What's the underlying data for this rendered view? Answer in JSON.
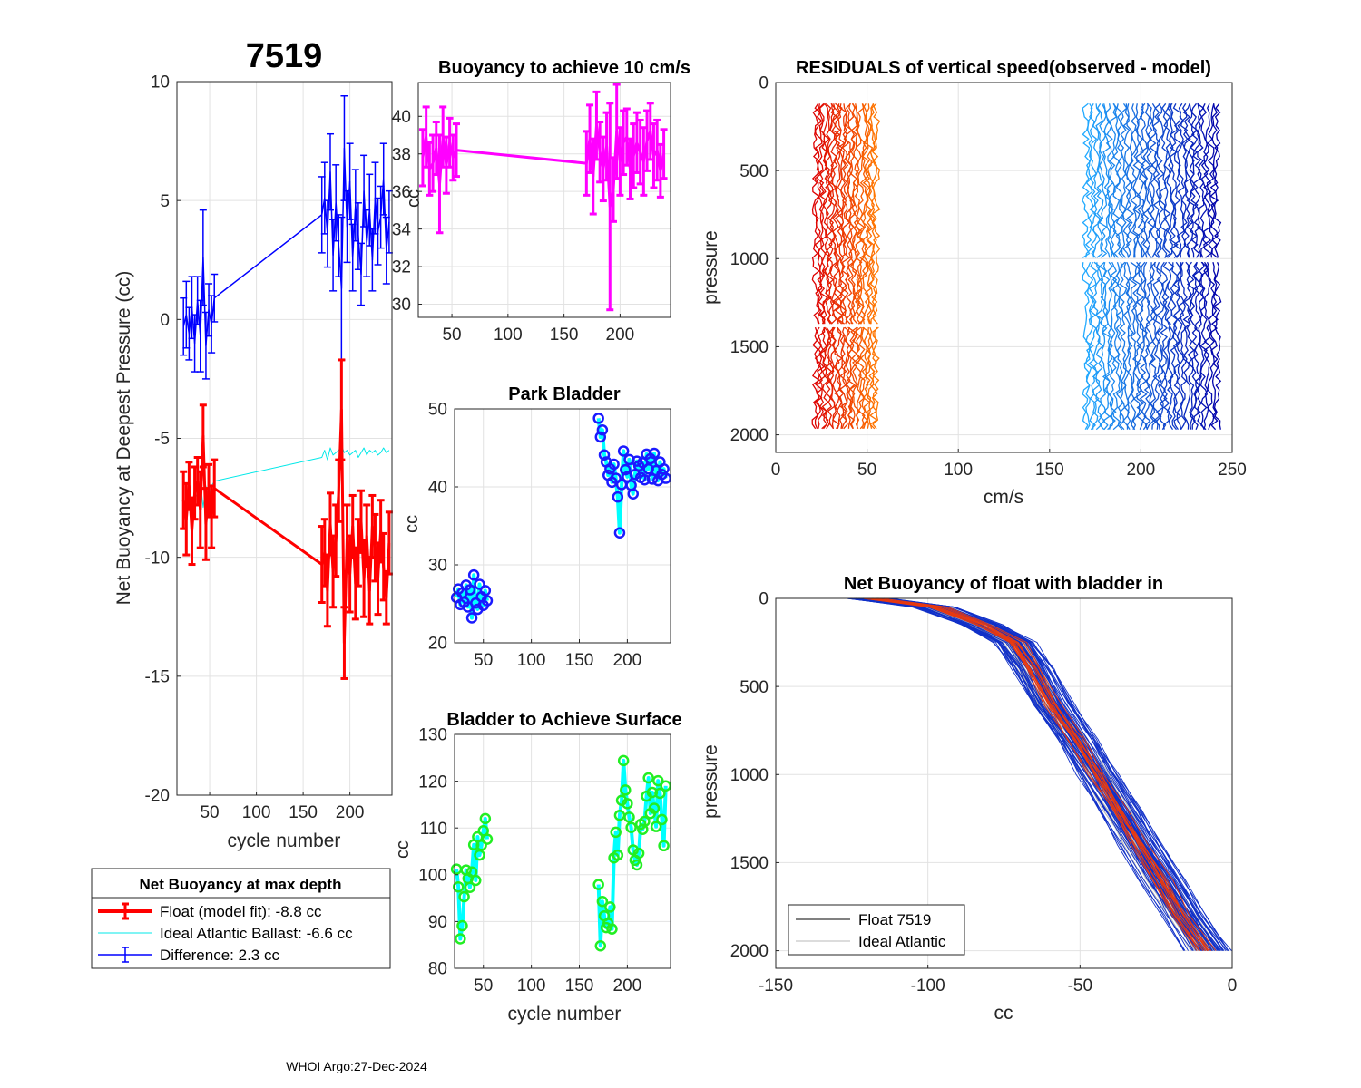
{
  "figure": {
    "title": "7519",
    "footer": "WHOI Argo:27-Dec-2024"
  },
  "colors": {
    "float": "#ff0000",
    "ideal": "#00e8e8",
    "difference": "#0000ff",
    "magenta": "#ff00ff",
    "park_marker": "#1a1aff",
    "park_line": "#00ffff",
    "surface_marker": "#22ee22",
    "surface_line": "#00ffff",
    "grid": "#e2e2e2",
    "axis": "#262626",
    "gray_profile": "#b8b8b8"
  },
  "chart_data": [
    {
      "id": "net_buoyancy",
      "type": "line",
      "title": "7519",
      "xlabel": "cycle number",
      "ylabel": "Net Buoyancy at Deepest Pressure (cc)",
      "xlim": [
        15,
        245
      ],
      "ylim": [
        -20,
        10
      ],
      "xticks": [
        50,
        100,
        150,
        200
      ],
      "yticks": [
        -20,
        -15,
        -10,
        -5,
        0,
        5,
        10
      ],
      "series": [
        {
          "name": "Float (model fit)",
          "style": "errorbar",
          "color": "#ff0000",
          "x": [
            22,
            25,
            28,
            31,
            34,
            37,
            40,
            43,
            46,
            49,
            52,
            55,
            170,
            173,
            176,
            179,
            182,
            185,
            188,
            191,
            194,
            197,
            200,
            203,
            206,
            209,
            212,
            215,
            218,
            221,
            224,
            227,
            230,
            233,
            236,
            239,
            242
          ],
          "y": [
            -7.6,
            -8.4,
            -7.0,
            -8.9,
            -7.3,
            -6.8,
            -8.0,
            -4.9,
            -8.6,
            -7.2,
            -8.3,
            -7.1,
            -10.3,
            -9.8,
            -11.4,
            -8.6,
            -10.6,
            -9.3,
            -7.2,
            -3.8,
            -13.6,
            -9.2,
            -10.7,
            -8.7,
            -11.1,
            -9.8,
            -8.5,
            -10.9,
            -9.1,
            -11.4,
            -8.7,
            -9.6,
            -10.9,
            -8.9,
            -10.4,
            -11.7,
            -9.4
          ],
          "err": [
            1.2,
            1.5,
            1.0,
            1.4,
            1.1,
            1.0,
            1.6,
            1.3,
            1.5,
            1.1,
            1.3,
            1.2,
            1.6,
            1.4,
            1.5,
            1.3,
            1.5,
            1.5,
            1.3,
            2.1,
            1.5,
            1.4,
            1.6,
            1.3,
            1.5,
            1.4,
            1.3,
            1.6,
            1.3,
            1.4,
            1.3,
            1.4,
            1.5,
            1.3,
            1.4,
            1.1,
            1.3
          ]
        },
        {
          "name": "Ideal Atlantic Ballast",
          "style": "line",
          "color": "#00e8e8",
          "x": [
            22,
            25,
            28,
            31,
            34,
            37,
            40,
            43,
            46,
            49,
            52,
            55,
            170,
            173,
            176,
            179,
            182,
            185,
            188,
            191,
            194,
            197,
            200,
            203,
            206,
            209,
            212,
            215,
            218,
            221,
            224,
            227,
            230,
            233,
            236,
            239,
            242
          ],
          "y": [
            -7.7,
            -8.2,
            -7.1,
            -8.4,
            -7.3,
            -7.5,
            -6.8,
            -7.9,
            -7.0,
            -7.6,
            -7.0,
            -6.8,
            -5.8,
            -5.5,
            -5.9,
            -5.4,
            -5.7,
            -5.6,
            -5.5,
            -5.3,
            -5.6,
            -5.5,
            -5.7,
            -5.6,
            -5.5,
            -5.8,
            -5.6,
            -5.4,
            -5.7,
            -5.5,
            -5.6,
            -5.5,
            -5.7,
            -5.6,
            -5.4,
            -5.6,
            -5.5
          ]
        },
        {
          "name": "Difference",
          "style": "errorbar",
          "color": "#0000ff",
          "x": [
            22,
            25,
            28,
            31,
            34,
            37,
            40,
            43,
            46,
            49,
            52,
            55,
            170,
            173,
            176,
            179,
            182,
            185,
            188,
            191,
            194,
            197,
            200,
            203,
            206,
            209,
            212,
            215,
            218,
            221,
            224,
            227,
            230,
            233,
            236,
            239,
            242
          ],
          "y": [
            -0.3,
            0.2,
            -0.6,
            0.5,
            -1.0,
            0.8,
            -0.7,
            2.6,
            -1.1,
            0.4,
            -0.2,
            0.9,
            4.4,
            5.1,
            3.6,
            6.2,
            2.7,
            4.9,
            3.1,
            1.3,
            7.2,
            3.9,
            5.8,
            2.6,
            4.8,
            3.5,
            1.9,
            5.4,
            3.2,
            4.6,
            2.5,
            5.1,
            3.7,
            4.3,
            5.9,
            2.9,
            4.1
          ],
          "err": [
            1.2,
            1.4,
            1.1,
            1.3,
            1.2,
            1.0,
            1.5,
            2.0,
            1.4,
            1.1,
            1.2,
            1.0,
            1.6,
            1.5,
            1.4,
            1.6,
            1.5,
            1.6,
            1.3,
            3.0,
            2.2,
            1.5,
            1.6,
            1.4,
            1.5,
            1.4,
            1.3,
            1.5,
            1.4,
            1.5,
            1.3,
            1.5,
            1.4,
            1.3,
            1.5,
            1.4,
            1.3
          ]
        }
      ],
      "legend": {
        "title": "Net Buoyancy at max depth",
        "entries": [
          "Float (model fit):  -8.8 cc",
          "Ideal Atlantic Ballast:  -6.6 cc",
          "Difference:   2.3 cc"
        ]
      }
    },
    {
      "id": "buoyancy_10cms",
      "type": "line",
      "title": "Buoyancy to achieve 10 cm/s",
      "xlabel": "",
      "ylabel": "cc",
      "xlim": [
        20,
        245
      ],
      "ylim": [
        29.3,
        41.8
      ],
      "xticks": [
        50,
        100,
        150,
        200
      ],
      "yticks": [
        30,
        32,
        34,
        36,
        38,
        40
      ],
      "series": [
        {
          "name": "buoyancy",
          "style": "errorbar",
          "color": "#ff00ff",
          "x": [
            24,
            27,
            30,
            33,
            36,
            39,
            42,
            45,
            48,
            51,
            54,
            170,
            173,
            176,
            179,
            182,
            185,
            188,
            191,
            194,
            197,
            200,
            203,
            206,
            209,
            212,
            215,
            218,
            221,
            224,
            227,
            230,
            233,
            236,
            239
          ],
          "y": [
            37.8,
            38.9,
            37.2,
            37.5,
            38.3,
            36.4,
            38.9,
            37.4,
            38.6,
            37.8,
            38.2,
            37.5,
            38.8,
            36.8,
            39.5,
            38.1,
            37.2,
            38.4,
            35.2,
            36.1,
            39.2,
            37.6,
            38.6,
            38.9,
            37.2,
            37.9,
            38.6,
            38.1,
            37.6,
            38.7,
            39.2,
            37.9,
            38.2,
            37.1,
            38.0
          ],
          "err": [
            1.5,
            1.6,
            1.4,
            1.5,
            1.4,
            2.6,
            1.6,
            1.5,
            1.3,
            1.2,
            1.4,
            1.7,
            1.8,
            2.0,
            1.8,
            1.6,
            1.7,
            1.8,
            5.5,
            1.7,
            2.5,
            1.8,
            1.7,
            1.5,
            1.6,
            1.7,
            1.6,
            1.7,
            1.8,
            1.6,
            1.5,
            1.7,
            1.6,
            1.4,
            1.3
          ]
        }
      ]
    },
    {
      "id": "park_bladder",
      "type": "line",
      "title": "Park Bladder",
      "xlabel": "",
      "ylabel": "cc",
      "xlim": [
        20,
        245
      ],
      "ylim": [
        20,
        50
      ],
      "xticks": [
        50,
        100,
        150,
        200
      ],
      "yticks": [
        20,
        30,
        40,
        50
      ],
      "series": [
        {
          "name": "park",
          "style": "marker-line",
          "color": "#1a1aff",
          "line_color": "#00ffff",
          "x": [
            22,
            24,
            26,
            28,
            30,
            32,
            34,
            36,
            38,
            40,
            42,
            44,
            46,
            48,
            50,
            52,
            54,
            170,
            172,
            174,
            176,
            178,
            180,
            182,
            184,
            186,
            188,
            190,
            192,
            194,
            196,
            198,
            200,
            202,
            204,
            206,
            208,
            210,
            212,
            214,
            216,
            218,
            220,
            222,
            224,
            226,
            228,
            230,
            232,
            234,
            236,
            238,
            240
          ],
          "y": [
            25.8,
            26.9,
            24.9,
            26.4,
            25.2,
            27.4,
            24.6,
            26.8,
            23.2,
            28.7,
            25.1,
            24.3,
            27.5,
            25.9,
            24.8,
            26.7,
            25.4,
            48.8,
            46.4,
            47.3,
            44.1,
            43.2,
            41.5,
            42.3,
            40.6,
            42.9,
            41.1,
            38.7,
            34.1,
            40.3,
            44.6,
            42.2,
            41.3,
            43.5,
            40.2,
            39.1,
            41.6,
            43.3,
            42.7,
            41.2,
            43.1,
            40.9,
            44.2,
            42.3,
            43.6,
            41.0,
            44.3,
            42.1,
            40.8,
            43.2,
            41.6,
            42.3,
            41.1
          ]
        }
      ]
    },
    {
      "id": "bladder_surface",
      "type": "line",
      "title": "Bladder to Achieve Surface",
      "xlabel": "cycle number",
      "ylabel": "cc",
      "xlim": [
        20,
        245
      ],
      "ylim": [
        80,
        130
      ],
      "xticks": [
        50,
        100,
        150,
        200
      ],
      "yticks": [
        80,
        90,
        100,
        110,
        120,
        130
      ],
      "series": [
        {
          "name": "surface",
          "style": "marker-line",
          "color": "#22ee22",
          "line_color": "#00ffff",
          "x": [
            22,
            24,
            26,
            28,
            30,
            32,
            34,
            36,
            38,
            40,
            42,
            44,
            46,
            48,
            50,
            52,
            54,
            170,
            172,
            174,
            176,
            178,
            180,
            182,
            184,
            186,
            188,
            190,
            192,
            194,
            196,
            198,
            200,
            202,
            204,
            206,
            208,
            210,
            212,
            214,
            216,
            218,
            220,
            222,
            224,
            226,
            228,
            230,
            232,
            234,
            236,
            238,
            240
          ],
          "y": [
            101.2,
            97.4,
            86.3,
            89.1,
            95.3,
            101.0,
            99.2,
            97.3,
            100.6,
            106.4,
            98.8,
            108.1,
            104.2,
            106.3,
            109.4,
            112.0,
            107.6,
            97.9,
            84.8,
            94.3,
            91.2,
            88.7,
            89.6,
            93.1,
            88.4,
            103.6,
            109.1,
            104.2,
            112.7,
            115.9,
            124.4,
            118.1,
            115.2,
            112.3,
            110.1,
            105.3,
            103.1,
            102.1,
            104.6,
            110.8,
            109.7,
            111.4,
            116.8,
            120.7,
            113.1,
            117.6,
            114.2,
            110.3,
            120.1,
            117.4,
            111.8,
            106.2,
            119.0
          ]
        }
      ]
    },
    {
      "id": "residuals",
      "type": "line",
      "title": "RESIDUALS of vertical speed(observed - model)",
      "xlabel": "cm/s",
      "ylabel": "pressure",
      "xlim": [
        0,
        250
      ],
      "ylim": [
        2100,
        0
      ],
      "xticks": [
        0,
        50,
        100,
        150,
        200,
        250
      ],
      "yticks": [
        0,
        500,
        1000,
        1500,
        2000
      ],
      "profile_count_left": 25,
      "profile_count_right": 40,
      "left_cycle_range": [
        22,
        55
      ],
      "right_cycle_range": [
        170,
        242
      ],
      "pressure_range": [
        120,
        1980
      ],
      "left_break_pressure": 1380,
      "right_break_pressure": 1010
    },
    {
      "id": "net_buoyancy_profile",
      "type": "line",
      "title": "Net Buoyancy of float with bladder in",
      "xlabel": "cc",
      "ylabel": "pressure",
      "xlim": [
        -150,
        0
      ],
      "ylim": [
        2100,
        0
      ],
      "xticks": [
        -150,
        -100,
        -50,
        0
      ],
      "yticks": [
        0,
        500,
        1000,
        1500,
        2000
      ],
      "reference_curve": {
        "pressure": [
          0,
          50,
          150,
          250,
          400,
          600,
          800,
          1000,
          1200,
          1400,
          1600,
          1800,
          2000
        ],
        "cc": [
          -120,
          -98,
          -83,
          -72,
          -66,
          -60,
          -52,
          -45,
          -38,
          -31,
          -24,
          -17,
          -9
        ]
      },
      "legend": {
        "entries": [
          "Float 7519",
          "Ideal Atlantic"
        ]
      }
    }
  ]
}
